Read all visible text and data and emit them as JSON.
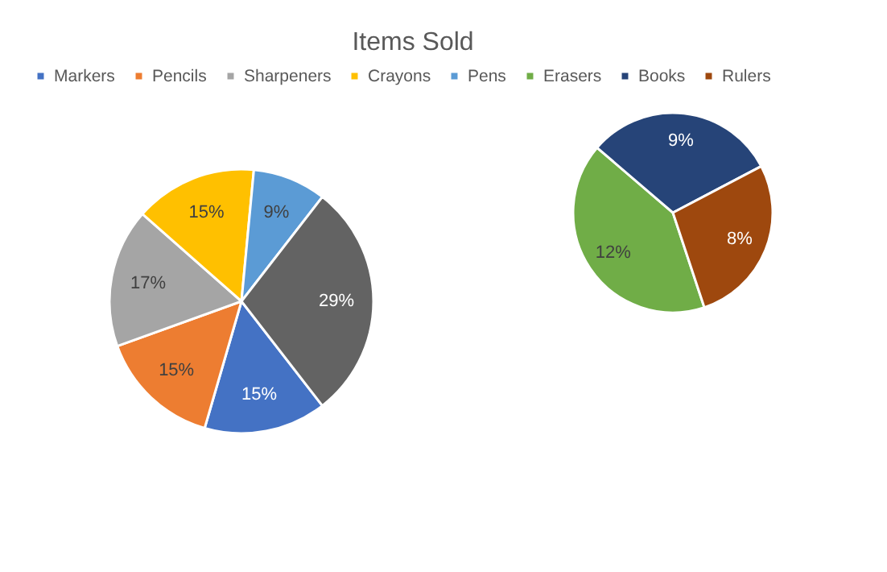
{
  "chart_data": [
    {
      "type": "pie",
      "title": "Items Sold",
      "legend": "top",
      "categories": [
        "Markers",
        "Pencils",
        "Sharpeners",
        "Crayons",
        "Pens",
        null
      ],
      "values": [
        15,
        15,
        17,
        15,
        9,
        29
      ],
      "colors": [
        "#4472c4",
        "#ed7d31",
        "#a5a5a5",
        "#ffc000",
        "#5b9bd5",
        "#636363"
      ],
      "value_labels": [
        "15%",
        "15%",
        "17%",
        "15%",
        "9%",
        "29%"
      ]
    },
    {
      "type": "pie",
      "legend": "top",
      "categories": [
        "Erasers",
        "Books",
        "Rulers"
      ],
      "values": [
        12,
        9,
        8
      ],
      "colors": [
        "#70ad47",
        "#264478",
        "#9e480e"
      ],
      "value_labels": [
        "12%",
        "9%",
        "8%"
      ]
    }
  ]
}
